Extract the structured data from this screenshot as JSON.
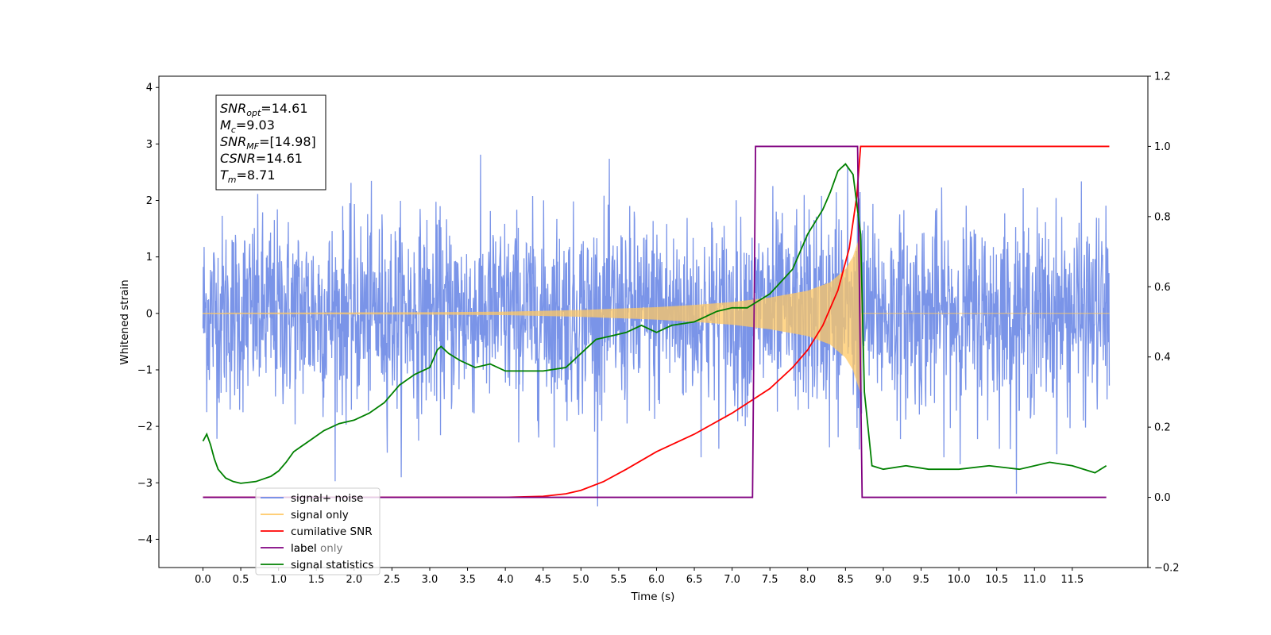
{
  "chart_data": {
    "type": "line",
    "title": "",
    "xlabel": "Time (s)",
    "ylabel": "Whitened strain",
    "xlim": [
      -0.5833,
      12.5
    ],
    "ylim": [
      -4.5,
      4.2
    ],
    "y2lim": [
      -0.2,
      1.2
    ],
    "x_ticks": [
      0.0,
      0.5,
      1.0,
      1.5,
      2.0,
      2.5,
      3.0,
      3.5,
      4.0,
      4.5,
      5.0,
      5.5,
      6.0,
      6.5,
      7.0,
      7.5,
      8.0,
      8.5,
      9.0,
      9.5,
      10.0,
      10.5,
      11.0,
      11.5
    ],
    "x_tick_labels": [
      "0.0",
      "0.5",
      "1.0",
      "1.5",
      "2.0",
      "2.5",
      "3.0",
      "3.5",
      "4.0",
      "4.5",
      "5.0",
      "5.5",
      "6.0",
      "6.5",
      "7.0",
      "7.5",
      "8.0",
      "8.5",
      "9.0",
      "9.5",
      "10.0",
      "10.5",
      "11.0",
      "11.5"
    ],
    "y_ticks": [
      -4,
      -3,
      -2,
      -1,
      0,
      1,
      2,
      3,
      4
    ],
    "y_tick_labels": [
      "−4",
      "−3",
      "−2",
      "−1",
      "0",
      "1",
      "2",
      "3",
      "4"
    ],
    "y2_ticks": [
      -0.2,
      0.0,
      0.2,
      0.4,
      0.6,
      0.8,
      1.0,
      1.2
    ],
    "y2_tick_labels": [
      "−0.2",
      "0.0",
      "0.2",
      "0.4",
      "0.6",
      "0.8",
      "1.0",
      "1.2"
    ],
    "grid": false,
    "legend_position": "lower-left",
    "legend": [
      {
        "label": "signal+ noise",
        "color": "#6b88e6"
      },
      {
        "label": "signal only",
        "color": "#ffc864"
      },
      {
        "label": "cumilative SNR",
        "color": "#ff0000"
      },
      {
        "label": "label",
        "color": "#800080"
      },
      {
        "label": "signal statistics",
        "color": "#008000"
      }
    ],
    "hidden_legend_text": "label only",
    "annotation": {
      "lines": [
        {
          "sym": "SNR",
          "sub": "opt",
          "val": "=14.61"
        },
        {
          "sym": "M",
          "sub": "c",
          "val": "=9.03"
        },
        {
          "sym": "SNR",
          "sub": "MF",
          "val": "=[14.98]"
        },
        {
          "sym": "CSNR",
          "sub": "",
          "val": "=14.61"
        },
        {
          "sym": "T",
          "sub": "m",
          "val": "=8.71"
        }
      ]
    },
    "series": [
      {
        "name": "signal+ noise",
        "axis": "left",
        "color": "#6b88e6",
        "x_range": [
          0.0,
          11.99
        ],
        "amplitude_sigma": 1.0,
        "min": -4.1,
        "max": 3.8
      },
      {
        "name": "signal only",
        "axis": "left",
        "color": "#ffc864",
        "x_range": [
          0.0,
          11.99
        ],
        "envelope": {
          "t": [
            0.0,
            3.0,
            4.0,
            5.0,
            6.0,
            6.5,
            7.0,
            7.5,
            8.0,
            8.3,
            8.5,
            8.6,
            8.65,
            8.7
          ],
          "a": [
            0.01,
            0.02,
            0.03,
            0.06,
            0.11,
            0.15,
            0.2,
            0.28,
            0.4,
            0.55,
            0.78,
            1.0,
            1.2,
            1.4
          ]
        },
        "merger_time": 8.71
      },
      {
        "name": "cumilative SNR",
        "axis": "right",
        "color": "#ff0000",
        "x": [
          0.0,
          4.0,
          4.5,
          4.8,
          5.0,
          5.3,
          5.6,
          6.0,
          6.5,
          7.0,
          7.5,
          7.8,
          8.0,
          8.2,
          8.4,
          8.55,
          8.65,
          8.7,
          11.99
        ],
        "y": [
          0.0,
          0.0,
          0.003,
          0.01,
          0.02,
          0.045,
          0.08,
          0.13,
          0.18,
          0.24,
          0.31,
          0.37,
          0.42,
          0.49,
          0.59,
          0.71,
          0.86,
          1.0,
          1.0
        ]
      },
      {
        "name": "label",
        "axis": "right",
        "color": "#800080",
        "x": [
          0.0,
          7.27,
          7.31,
          8.66,
          8.72,
          11.95
        ],
        "y": [
          0.0,
          0.0,
          1.0,
          1.0,
          0.0,
          0.0
        ]
      },
      {
        "name": "signal statistics",
        "axis": "right",
        "color": "#008000",
        "x": [
          0.0,
          0.05,
          0.1,
          0.15,
          0.2,
          0.3,
          0.4,
          0.5,
          0.7,
          0.9,
          1.0,
          1.1,
          1.2,
          1.4,
          1.6,
          1.8,
          2.0,
          2.2,
          2.4,
          2.6,
          2.8,
          3.0,
          3.1,
          3.15,
          3.25,
          3.4,
          3.6,
          3.8,
          4.0,
          4.2,
          4.5,
          4.8,
          5.0,
          5.2,
          5.4,
          5.6,
          5.8,
          6.0,
          6.2,
          6.5,
          6.8,
          7.0,
          7.2,
          7.5,
          7.8,
          8.0,
          8.2,
          8.3,
          8.4,
          8.5,
          8.6,
          8.7,
          8.75,
          8.85,
          9.0,
          9.3,
          9.6,
          10.0,
          10.4,
          10.8,
          11.2,
          11.5,
          11.8,
          11.95
        ],
        "y": [
          0.16,
          0.18,
          0.15,
          0.11,
          0.08,
          0.055,
          0.045,
          0.04,
          0.045,
          0.06,
          0.075,
          0.1,
          0.13,
          0.16,
          0.19,
          0.21,
          0.22,
          0.24,
          0.27,
          0.32,
          0.35,
          0.37,
          0.42,
          0.43,
          0.41,
          0.39,
          0.37,
          0.38,
          0.36,
          0.36,
          0.36,
          0.37,
          0.41,
          0.45,
          0.46,
          0.47,
          0.49,
          0.47,
          0.49,
          0.5,
          0.53,
          0.54,
          0.54,
          0.58,
          0.65,
          0.75,
          0.82,
          0.87,
          0.93,
          0.95,
          0.92,
          0.75,
          0.3,
          0.09,
          0.08,
          0.09,
          0.08,
          0.08,
          0.09,
          0.08,
          0.1,
          0.09,
          0.07,
          0.09
        ]
      }
    ]
  }
}
